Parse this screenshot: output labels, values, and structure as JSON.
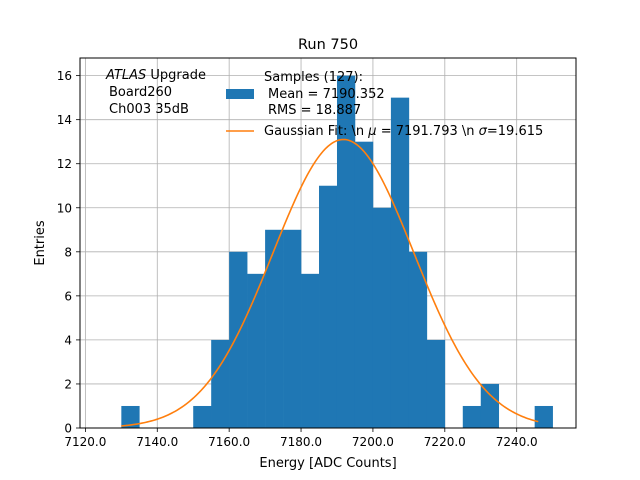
{
  "chart_data": {
    "type": "bar",
    "title": "Run 750",
    "xlabel": "Energy [ADC Counts]",
    "ylabel": "Entries",
    "xlim": [
      7118.5,
      7256.5
    ],
    "ylim": [
      0,
      16.8
    ],
    "grid": true,
    "x_ticks": [
      7120,
      7140,
      7160,
      7180,
      7200,
      7220,
      7240
    ],
    "x_tick_labels": [
      "7120.0",
      "7140.0",
      "7160.0",
      "7180.0",
      "7200.0",
      "7220.0",
      "7240.0"
    ],
    "y_ticks": [
      0,
      2,
      4,
      6,
      8,
      10,
      12,
      14,
      16
    ],
    "y_tick_labels": [
      "0",
      "2",
      "4",
      "6",
      "8",
      "10",
      "12",
      "14",
      "16"
    ],
    "bin_width": 5,
    "bin_starts": [
      7130,
      7135,
      7140,
      7145,
      7150,
      7155,
      7160,
      7165,
      7170,
      7175,
      7180,
      7185,
      7190,
      7195,
      7200,
      7205,
      7210,
      7215,
      7220,
      7225,
      7230,
      7235,
      7240,
      7245
    ],
    "counts": [
      1,
      0,
      0,
      0,
      1,
      4,
      8,
      7,
      9,
      9,
      7,
      11,
      16,
      13,
      10,
      15,
      8,
      4,
      0,
      1,
      2,
      0,
      0,
      1
    ],
    "fit": {
      "amplitude": 13.1,
      "mu": 7191.793,
      "sigma": 19.615,
      "x_min": 7130,
      "x_max": 7246
    },
    "annotation": {
      "atlas": "ATLAS",
      "upgrade": " Upgrade",
      "line2": "Board260",
      "line3": "Ch003 35dB"
    },
    "legend": {
      "placement": "top-right",
      "hist_line1": "Samples (127):",
      "hist_line2": "Mean = 7190.352",
      "hist_line3": "RMS = 18.887",
      "fit_prefix": "Gaussian Fit: \\n ",
      "fit_mu_symbol": "μ",
      "fit_mid": " = 7191.793 \\n ",
      "fit_sigma_symbol": "σ",
      "fit_suffix": "=19.615"
    },
    "colors": {
      "bars": "#1f77b4",
      "fit": "#ff7f0e",
      "grid": "#b0b0b0"
    }
  }
}
